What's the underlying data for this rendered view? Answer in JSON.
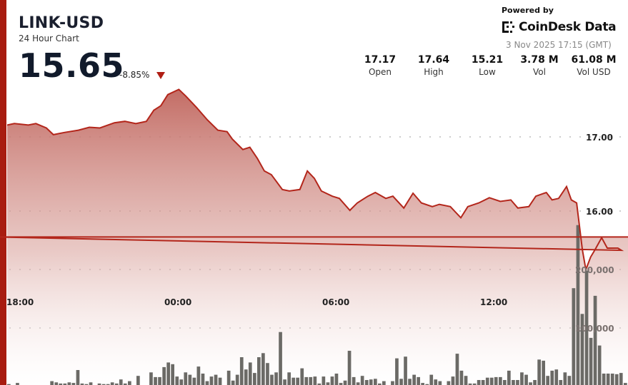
{
  "header": {
    "title": "LINK-USD",
    "subtitle": "24 Hour Chart",
    "price": "15.65",
    "change": "-8.85%",
    "change_direction": "down",
    "powered_by": "Powered by",
    "brand": "CoinDesk Data",
    "timestamp": "3 Nov 2025 17:15 (GMT)"
  },
  "stats": [
    {
      "value": "17.17",
      "label": "Open"
    },
    {
      "value": "17.64",
      "label": "High"
    },
    {
      "value": "15.21",
      "label": "Low"
    },
    {
      "value": "3.78 M",
      "label": "Vol"
    },
    {
      "value": "61.08 M",
      "label": "Vol USD"
    }
  ],
  "colors": {
    "accent": "#a81c10",
    "line": "#b3261b",
    "fill_top": "#c0655d",
    "volume_bar": "#6b6a66"
  },
  "chart_data": {
    "type": "area",
    "x_ticks": [
      "18:00",
      "00:00",
      "06:00",
      "12:00"
    ],
    "price_ticks": [
      "17.00",
      "16.00"
    ],
    "price_tick_values": [
      17,
      16
    ],
    "volume_ticks": [
      "200,000",
      "100,000"
    ],
    "volume_tick_values": [
      200000,
      100000
    ],
    "grid": true,
    "price_series": [
      [
        "17:36",
        17.16
      ],
      [
        "17:52",
        17.18
      ],
      [
        "18:24",
        17.16
      ],
      [
        "18:41",
        17.18
      ],
      [
        "19:05",
        17.12
      ],
      [
        "19:21",
        17.03
      ],
      [
        "19:46",
        17.06
      ],
      [
        "20:18",
        17.09
      ],
      [
        "20:43",
        17.13
      ],
      [
        "21:07",
        17.12
      ],
      [
        "21:40",
        17.19
      ],
      [
        "22:04",
        17.21
      ],
      [
        "22:29",
        17.18
      ],
      [
        "22:53",
        17.21
      ],
      [
        "23:10",
        17.36
      ],
      [
        "23:26",
        17.42
      ],
      [
        "23:42",
        17.57
      ],
      [
        "00:07",
        17.64
      ],
      [
        "00:23",
        17.55
      ],
      [
        "00:47",
        17.4
      ],
      [
        "01:12",
        17.23
      ],
      [
        "01:36",
        17.09
      ],
      [
        "01:57",
        17.07
      ],
      [
        "02:09",
        16.97
      ],
      [
        "02:33",
        16.83
      ],
      [
        "02:49",
        16.86
      ],
      [
        "03:06",
        16.71
      ],
      [
        "03:22",
        16.54
      ],
      [
        "03:38",
        16.49
      ],
      [
        "04:03",
        16.29
      ],
      [
        "04:19",
        16.27
      ],
      [
        "04:43",
        16.29
      ],
      [
        "05:00",
        16.54
      ],
      [
        "05:16",
        16.44
      ],
      [
        "05:32",
        16.27
      ],
      [
        "05:57",
        16.2
      ],
      [
        "06:13",
        16.17
      ],
      [
        "06:37",
        16.01
      ],
      [
        "06:54",
        16.11
      ],
      [
        "07:18",
        16.2
      ],
      [
        "07:35",
        16.25
      ],
      [
        "07:59",
        16.17
      ],
      [
        "08:15",
        16.2
      ],
      [
        "08:40",
        16.04
      ],
      [
        "09:01",
        16.24
      ],
      [
        "09:20",
        16.11
      ],
      [
        "09:45",
        16.06
      ],
      [
        "10:01",
        16.09
      ],
      [
        "10:26",
        16.06
      ],
      [
        "10:50",
        15.91
      ],
      [
        "11:06",
        16.06
      ],
      [
        "11:31",
        16.11
      ],
      [
        "11:55",
        16.18
      ],
      [
        "12:20",
        16.13
      ],
      [
        "12:44",
        16.15
      ],
      [
        "13:00",
        16.04
      ],
      [
        "13:25",
        16.06
      ],
      [
        "13:41",
        16.2
      ],
      [
        "14:05",
        16.25
      ],
      [
        "14:18",
        16.15
      ],
      [
        "14:33",
        16.17
      ],
      [
        "14:51",
        16.33
      ],
      [
        "15:02",
        16.15
      ],
      [
        "15:14",
        16.11
      ],
      [
        "15:27",
        15.48
      ],
      [
        "15:35",
        15.21
      ],
      [
        "15:46",
        15.38
      ],
      [
        "15:56",
        15.48
      ],
      [
        "16:11",
        15.64
      ],
      [
        "16:24",
        15.5
      ],
      [
        "16:48",
        15.5
      ],
      [
        "16:56",
        15.47
      ],
      [
        "17:08",
        15.65
      ]
    ],
    "volume_series": [
      4000,
      2000,
      6000,
      2000,
      1000,
      1000,
      1000,
      1000,
      1000,
      2000,
      9000,
      7000,
      5000,
      5000,
      7000,
      6000,
      28000,
      5000,
      4000,
      7000,
      1000,
      5000,
      4000,
      4000,
      7000,
      5000,
      12000,
      5000,
      9000,
      0,
      18000,
      2000,
      2000,
      24000,
      16000,
      16000,
      33000,
      41000,
      38000,
      17000,
      12000,
      24000,
      20000,
      15000,
      34000,
      22000,
      9000,
      17000,
      20000,
      15000,
      1000,
      27000,
      10000,
      20000,
      50000,
      29000,
      41000,
      23000,
      50000,
      57000,
      40000,
      20000,
      24000,
      93000,
      12000,
      24000,
      15000,
      15000,
      31000,
      16000,
      16000,
      17000,
      5000,
      17000,
      7000,
      17000,
      22000,
      6000,
      10000,
      61000,
      16000,
      7000,
      18000,
      11000,
      12000,
      13000,
      5000,
      9000,
      2000,
      9000,
      48000,
      13000,
      51000,
      13000,
      20000,
      16000,
      6000,
      4000,
      20000,
      12000,
      9000,
      2000,
      9000,
      17000,
      56000,
      27000,
      18000,
      5000,
      5000,
      11000,
      11000,
      15000,
      15000,
      16000,
      16000,
      11000,
      27000,
      11000,
      11000,
      24000,
      20000,
      7000,
      11000,
      46000,
      44000,
      18000,
      27000,
      29000,
      11000,
      24000,
      18000,
      168000,
      276000,
      124000,
      198000,
      83000,
      155000,
      70000,
      22000,
      22000,
      22000,
      21000,
      23000,
      6000
    ]
  }
}
